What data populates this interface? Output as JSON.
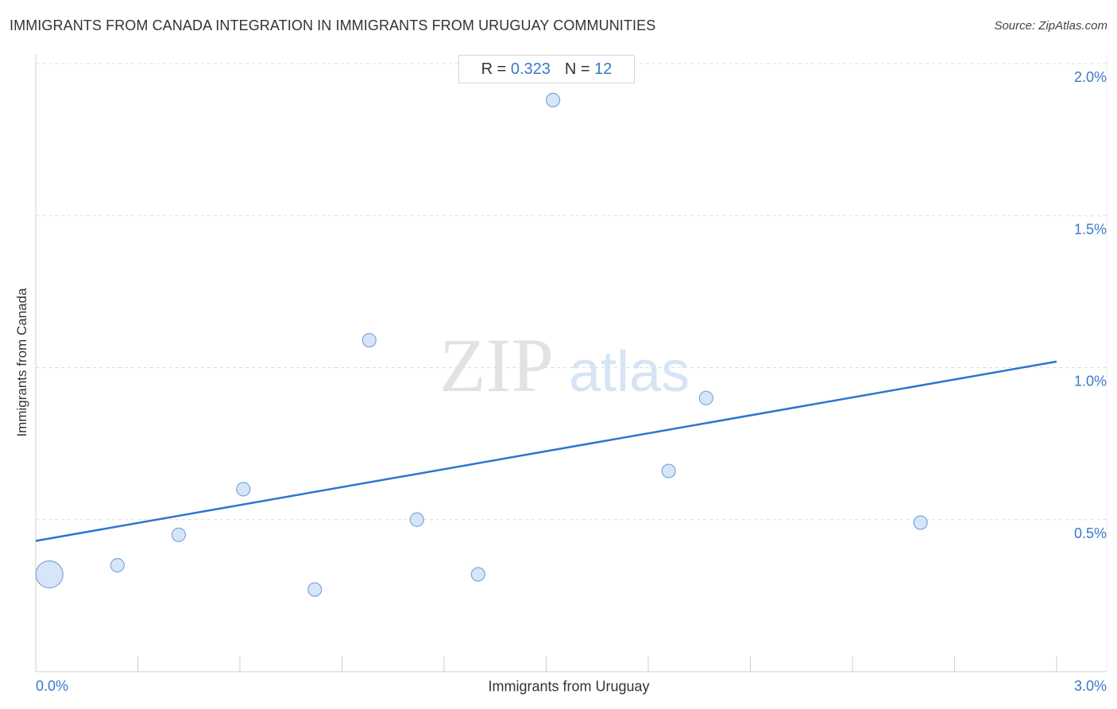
{
  "header": {
    "title": "IMMIGRANTS FROM CANADA INTEGRATION IN IMMIGRANTS FROM URUGUAY COMMUNITIES",
    "source": "Source: ZipAtlas.com"
  },
  "stats": {
    "r_label": "R =",
    "r_value": "0.323",
    "n_label": "N =",
    "n_value": "12"
  },
  "watermark": {
    "zip": "ZIP",
    "atlas": "atlas"
  },
  "colors": {
    "point_fill": "#cfe0f7",
    "point_stroke": "#7aa6dc",
    "trend_line": "#2f74d0",
    "tick_text": "#3a78c9",
    "grid": "#dcdcdc"
  },
  "chart_data": {
    "type": "scatter",
    "xlabel": "Immigrants from Uruguay",
    "ylabel": "Immigrants from Canada",
    "xlim": [
      0,
      3.0
    ],
    "ylim": [
      0,
      2.0
    ],
    "x_tick_labels": [
      {
        "value": 0,
        "label": "0.0%"
      },
      {
        "value": 3.0,
        "label": "3.0%"
      }
    ],
    "y_tick_labels": [
      {
        "value": 0.5,
        "label": "0.5%"
      },
      {
        "value": 1.0,
        "label": "1.0%"
      },
      {
        "value": 1.5,
        "label": "1.5%"
      },
      {
        "value": 2.0,
        "label": "2.0%"
      }
    ],
    "grid": true,
    "points": [
      {
        "x": 0.04,
        "y": 0.32,
        "size": "large"
      },
      {
        "x": 0.24,
        "y": 0.35,
        "size": "small"
      },
      {
        "x": 0.42,
        "y": 0.45,
        "size": "small"
      },
      {
        "x": 0.61,
        "y": 0.6,
        "size": "small"
      },
      {
        "x": 0.82,
        "y": 0.27,
        "size": "small"
      },
      {
        "x": 0.98,
        "y": 1.09,
        "size": "small"
      },
      {
        "x": 1.12,
        "y": 0.5,
        "size": "small"
      },
      {
        "x": 1.3,
        "y": 0.32,
        "size": "small"
      },
      {
        "x": 1.52,
        "y": 1.88,
        "size": "small"
      },
      {
        "x": 1.86,
        "y": 0.66,
        "size": "small"
      },
      {
        "x": 1.97,
        "y": 0.9,
        "size": "small"
      },
      {
        "x": 2.6,
        "y": 0.49,
        "size": "small"
      }
    ],
    "trend_line": {
      "x": [
        0,
        3.0
      ],
      "y": [
        0.43,
        1.02
      ]
    }
  }
}
